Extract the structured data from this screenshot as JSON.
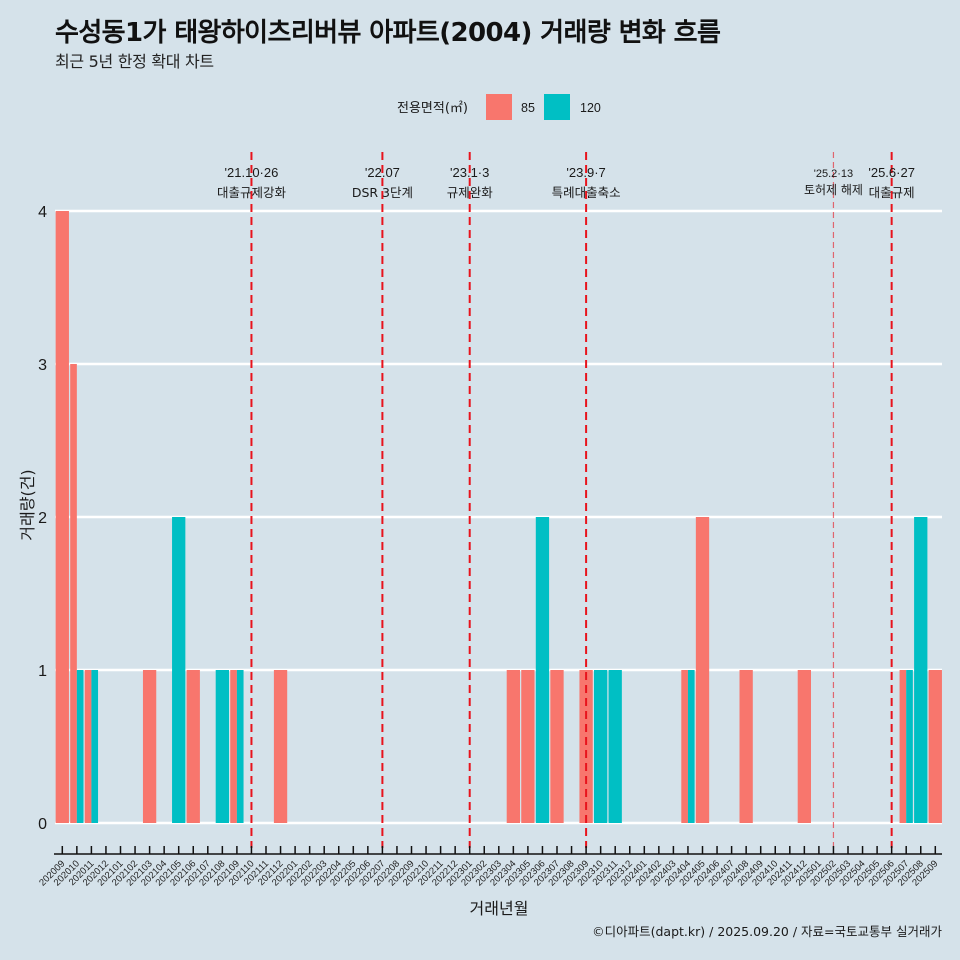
{
  "chart_data": {
    "type": "bar",
    "title": "수성동1가 태왕하이츠리버뷰 아파트(2004) 거래량 변화 흐름",
    "subtitle": "최근 5년 한정 확대 차트",
    "xlabel": "거래년월",
    "ylabel": "거래량(건)",
    "ylim": [
      0,
      4
    ],
    "y_ticks": [
      0,
      1,
      2,
      3,
      4
    ],
    "grid": true,
    "bar_position": "dodge",
    "legend": {
      "title": "전용면적(㎡)",
      "position": "top"
    },
    "categories": [
      "202009",
      "202010",
      "202011",
      "202012",
      "202101",
      "202102",
      "202103",
      "202104",
      "202105",
      "202106",
      "202107",
      "202108",
      "202109",
      "202110",
      "202111",
      "202112",
      "202201",
      "202202",
      "202203",
      "202204",
      "202205",
      "202206",
      "202207",
      "202208",
      "202209",
      "202210",
      "202211",
      "202212",
      "202301",
      "202302",
      "202303",
      "202304",
      "202305",
      "202306",
      "202307",
      "202308",
      "202309",
      "202310",
      "202311",
      "202312",
      "202401",
      "202402",
      "202403",
      "202404",
      "202405",
      "202406",
      "202407",
      "202408",
      "202409",
      "202410",
      "202411",
      "202412",
      "202501",
      "202502",
      "202503",
      "202504",
      "202505",
      "202506",
      "202507",
      "202508",
      "202509"
    ],
    "series": [
      {
        "name": "85",
        "color": "#F8766D",
        "values": [
          4,
          3,
          1,
          null,
          null,
          null,
          1,
          null,
          null,
          1,
          null,
          null,
          1,
          null,
          null,
          1,
          null,
          null,
          null,
          null,
          null,
          null,
          null,
          null,
          null,
          null,
          null,
          null,
          null,
          null,
          null,
          1,
          1,
          null,
          1,
          null,
          1,
          null,
          null,
          null,
          null,
          null,
          null,
          1,
          2,
          null,
          null,
          1,
          null,
          null,
          null,
          1,
          null,
          null,
          null,
          null,
          null,
          null,
          1,
          null,
          1
        ]
      },
      {
        "name": "120",
        "color": "#00BFC4",
        "values": [
          null,
          1,
          1,
          null,
          null,
          null,
          null,
          null,
          2,
          null,
          null,
          1,
          1,
          null,
          null,
          null,
          null,
          null,
          null,
          null,
          null,
          null,
          null,
          null,
          null,
          null,
          null,
          null,
          null,
          null,
          null,
          null,
          null,
          2,
          null,
          null,
          null,
          1,
          1,
          null,
          null,
          null,
          null,
          1,
          null,
          null,
          null,
          null,
          null,
          null,
          null,
          null,
          null,
          null,
          null,
          null,
          null,
          null,
          1,
          2,
          null
        ]
      }
    ],
    "annotations": [
      {
        "x": "202110",
        "date": "'21.10·26",
        "label": "대출규제강화",
        "color": "#e8131c",
        "emphasis": "major"
      },
      {
        "x": "202207",
        "date": "'22.07",
        "label": "DSR 3단계",
        "color": "#e8131c",
        "emphasis": "major"
      },
      {
        "x": "202301",
        "date": "'23.1·3",
        "label": "규제완화",
        "color": "#e8131c",
        "emphasis": "major"
      },
      {
        "x": "202309",
        "date": "'23.9·7",
        "label": "특례대출축소",
        "color": "#e8131c",
        "emphasis": "major"
      },
      {
        "x": "202502",
        "date": "'25.2·13",
        "label": "토허제 해제",
        "color": "#e8131c",
        "emphasis": "minor"
      },
      {
        "x": "202506",
        "date": "'25.6·27",
        "label": "대출규제",
        "color": "#e8131c",
        "emphasis": "major"
      }
    ]
  },
  "caption": "©디아파트(dapt.kr) / 2025.09.20 / 자료=국토교통부 실거래가"
}
